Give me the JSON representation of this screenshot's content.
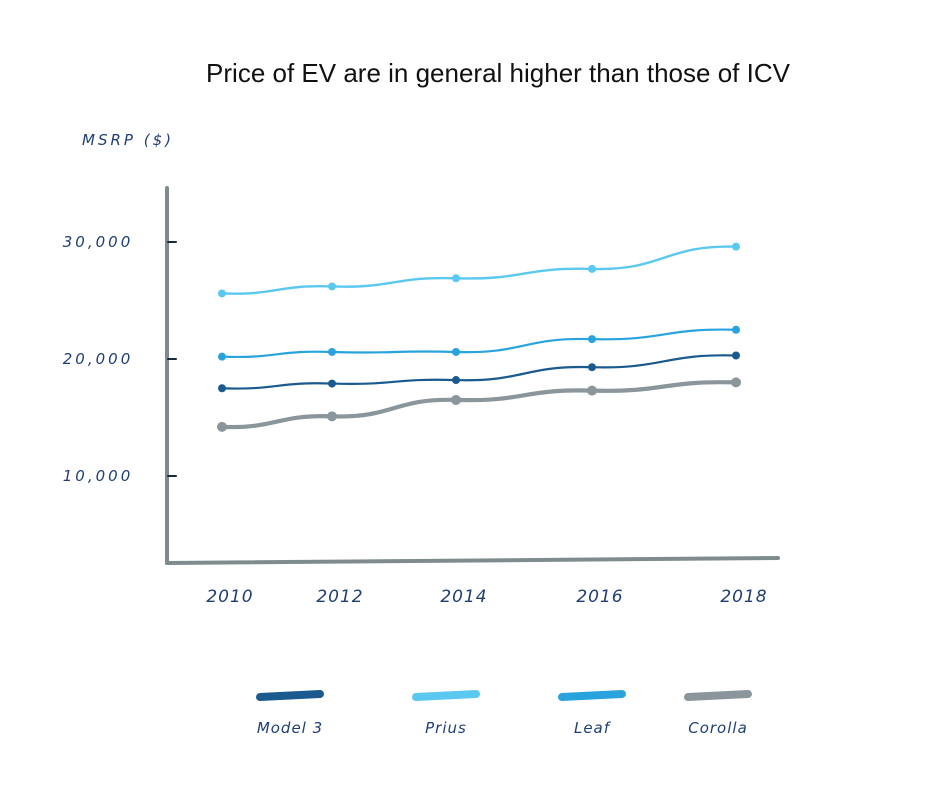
{
  "chart_data": {
    "type": "line",
    "title": "Price of EV are in general higher than those of ICV",
    "xlabel": "",
    "ylabel": "MSRP ($)",
    "x": [
      "2010",
      "2012",
      "2014",
      "2016",
      "2018"
    ],
    "yticks": [
      "10,000",
      "20,000",
      "30,000"
    ],
    "ylim": [
      6000,
      33000
    ],
    "grid": false,
    "legend": "bottom",
    "series": [
      {
        "name": "Model 3",
        "color": "#1a5a8e",
        "values": [
          17500,
          17900,
          18200,
          19300,
          20300
        ]
      },
      {
        "name": "Prius",
        "color": "#5bc8ef",
        "values": [
          25600,
          26200,
          26900,
          27700,
          29600
        ]
      },
      {
        "name": "Leaf",
        "color": "#29a3dd",
        "values": [
          20200,
          20600,
          20600,
          21700,
          22500
        ]
      },
      {
        "name": "Corolla",
        "color": "#8a969c",
        "values": [
          14200,
          15100,
          16500,
          17300,
          18000
        ]
      }
    ]
  }
}
